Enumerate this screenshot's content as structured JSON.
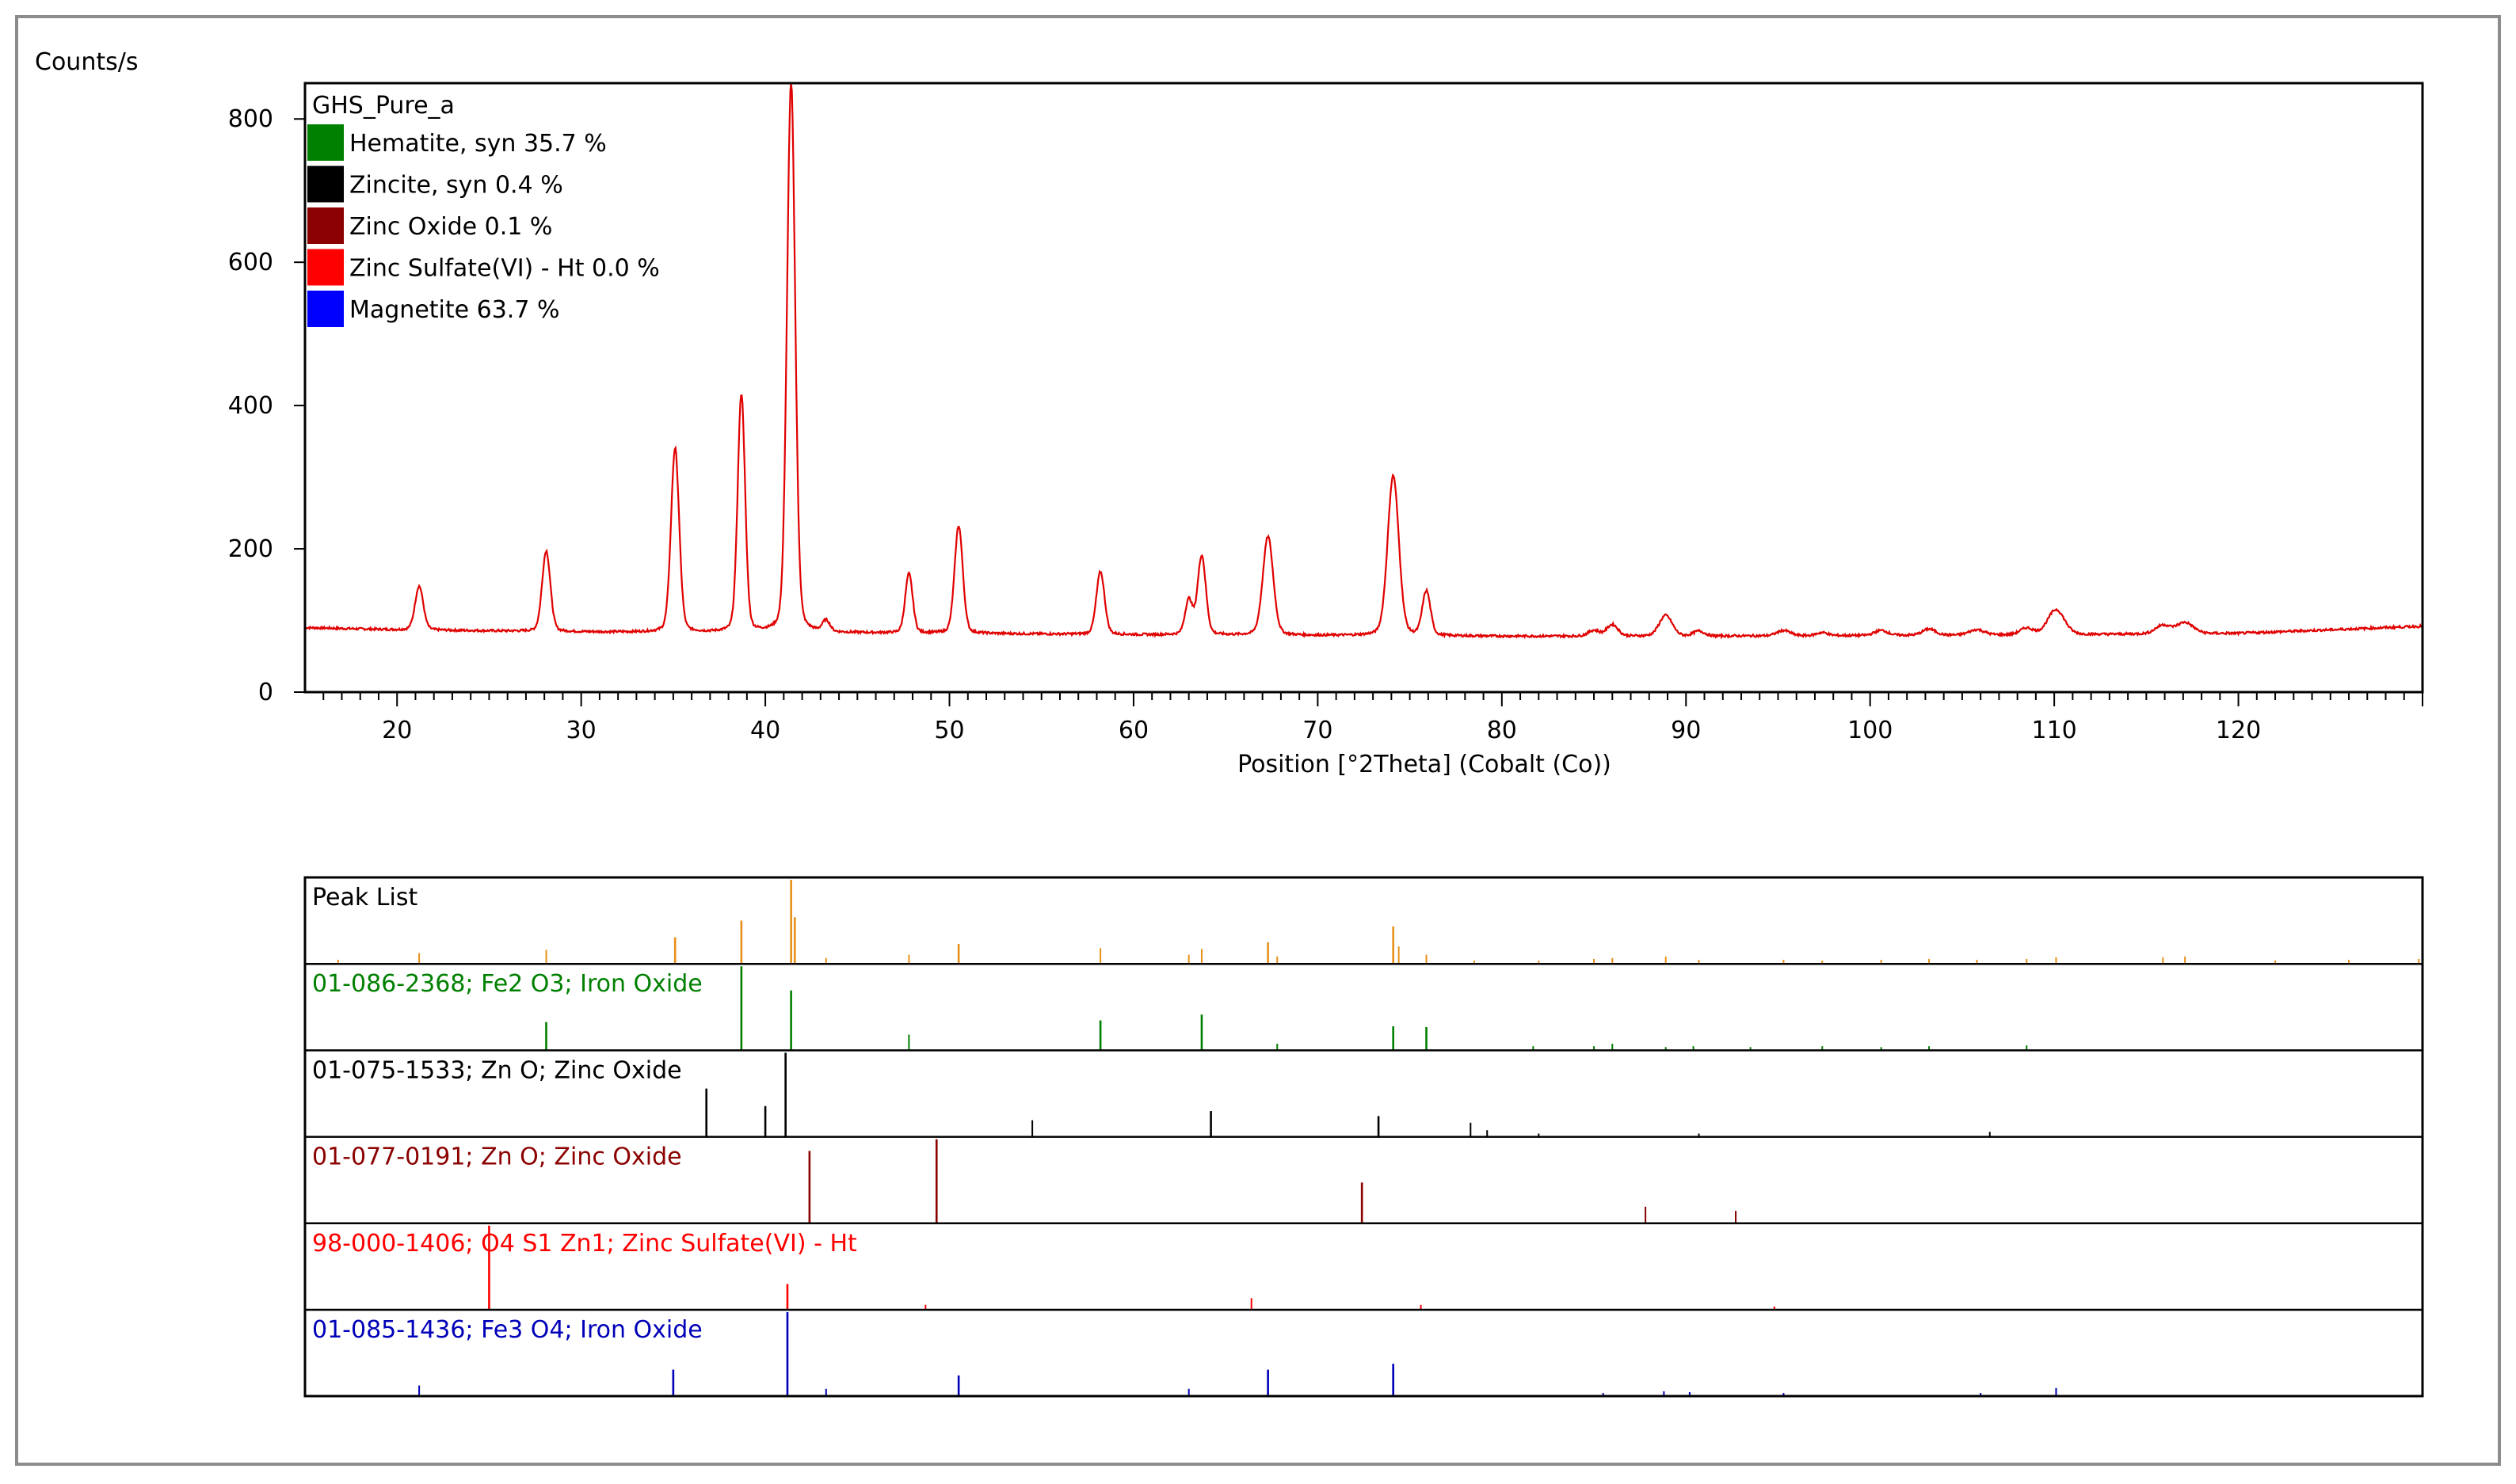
{
  "ylabel": "Counts/s",
  "xlabel": "Position [°2Theta] (Cobalt (Co))",
  "chart_data": {
    "type": "line",
    "sample_name": "GHS_Pure_a",
    "xlabel": "Position [°2Theta] (Cobalt (Co))",
    "ylabel": "Counts/s",
    "xlim": [
      15,
      130
    ],
    "ylim": [
      0,
      850
    ],
    "x_ticks": [
      20,
      30,
      40,
      50,
      60,
      70,
      80,
      90,
      100,
      110,
      120
    ],
    "y_ticks": [
      0,
      200,
      400,
      600,
      800
    ],
    "x_tick_labels": [
      "20",
      "30",
      "40",
      "50",
      "60",
      "70",
      "80",
      "90",
      "100",
      "110",
      "120"
    ],
    "y_tick_labels": [
      "0",
      "200",
      "400",
      "600",
      "800"
    ],
    "line_color": "#e00000",
    "baseline": [
      [
        15,
        90
      ],
      [
        20,
        87
      ],
      [
        30,
        84
      ],
      [
        40,
        83
      ],
      [
        50,
        82
      ],
      [
        60,
        80
      ],
      [
        70,
        79
      ],
      [
        80,
        78
      ],
      [
        90,
        78
      ],
      [
        100,
        79
      ],
      [
        110,
        80
      ],
      [
        120,
        82
      ],
      [
        130,
        92
      ]
    ],
    "peaks": [
      {
        "x": 21.2,
        "y": 148,
        "w": 0.22
      },
      {
        "x": 28.1,
        "y": 197,
        "w": 0.22
      },
      {
        "x": 35.1,
        "y": 340,
        "w": 0.22
      },
      {
        "x": 38.7,
        "y": 415,
        "w": 0.2
      },
      {
        "x": 41.4,
        "y": 850,
        "w": 0.22
      },
      {
        "x": 43.3,
        "y": 98,
        "w": 0.2
      },
      {
        "x": 47.8,
        "y": 165,
        "w": 0.2
      },
      {
        "x": 50.5,
        "y": 232,
        "w": 0.22
      },
      {
        "x": 58.2,
        "y": 168,
        "w": 0.22
      },
      {
        "x": 63.0,
        "y": 128,
        "w": 0.2
      },
      {
        "x": 63.7,
        "y": 190,
        "w": 0.22
      },
      {
        "x": 67.3,
        "y": 217,
        "w": 0.28
      },
      {
        "x": 74.1,
        "y": 302,
        "w": 0.3
      },
      {
        "x": 75.9,
        "y": 140,
        "w": 0.22
      },
      {
        "x": 85.0,
        "y": 86,
        "w": 0.3
      },
      {
        "x": 86.0,
        "y": 94,
        "w": 0.3
      },
      {
        "x": 88.9,
        "y": 107,
        "w": 0.35
      },
      {
        "x": 90.7,
        "y": 85,
        "w": 0.3
      },
      {
        "x": 95.3,
        "y": 86,
        "w": 0.35
      },
      {
        "x": 97.4,
        "y": 83,
        "w": 0.3
      },
      {
        "x": 100.6,
        "y": 86,
        "w": 0.35
      },
      {
        "x": 103.2,
        "y": 88,
        "w": 0.35
      },
      {
        "x": 105.8,
        "y": 87,
        "w": 0.4
      },
      {
        "x": 108.5,
        "y": 89,
        "w": 0.35
      },
      {
        "x": 110.1,
        "y": 115,
        "w": 0.45
      },
      {
        "x": 115.9,
        "y": 93,
        "w": 0.4
      },
      {
        "x": 117.1,
        "y": 97,
        "w": 0.45
      }
    ],
    "legend": [
      {
        "label": "Hematite, syn 35.7 %",
        "color": "#008000"
      },
      {
        "label": "Zincite, syn 0.4 %",
        "color": "#000000"
      },
      {
        "label": "Zinc Oxide 0.1 %",
        "color": "#8b0000"
      },
      {
        "label": "Zinc Sulfate(VI) - Ht 0.0 %",
        "color": "#ff0000"
      },
      {
        "label": "Magnetite 63.7 %",
        "color": "#0000ff"
      }
    ],
    "stick_panels": [
      {
        "label": "Peak List",
        "color": "#e8901a",
        "text_color": "#000000",
        "sticks": [
          [
            16.8,
            0.04
          ],
          [
            21.2,
            0.12
          ],
          [
            28.1,
            0.16
          ],
          [
            35.1,
            0.31
          ],
          [
            38.7,
            0.51
          ],
          [
            41.4,
            1.0
          ],
          [
            41.6,
            0.55
          ],
          [
            43.3,
            0.06
          ],
          [
            47.8,
            0.1
          ],
          [
            50.5,
            0.23
          ],
          [
            58.2,
            0.18
          ],
          [
            63.0,
            0.1
          ],
          [
            63.7,
            0.17
          ],
          [
            67.3,
            0.25
          ],
          [
            67.8,
            0.08
          ],
          [
            74.1,
            0.44
          ],
          [
            74.4,
            0.2
          ],
          [
            75.9,
            0.1
          ],
          [
            78.5,
            0.03
          ],
          [
            82.0,
            0.03
          ],
          [
            85.0,
            0.05
          ],
          [
            86.0,
            0.06
          ],
          [
            88.9,
            0.08
          ],
          [
            90.7,
            0.04
          ],
          [
            95.3,
            0.04
          ],
          [
            97.4,
            0.03
          ],
          [
            100.6,
            0.04
          ],
          [
            103.2,
            0.05
          ],
          [
            105.8,
            0.04
          ],
          [
            108.5,
            0.05
          ],
          [
            110.1,
            0.07
          ],
          [
            115.9,
            0.07
          ],
          [
            117.1,
            0.08
          ],
          [
            122.0,
            0.03
          ],
          [
            126.0,
            0.04
          ],
          [
            129.8,
            0.05
          ]
        ]
      },
      {
        "label": "01-086-2368; Fe2 O3; Iron Oxide",
        "color": "#008000",
        "text_color": "#008000",
        "sticks": [
          [
            28.1,
            0.33
          ],
          [
            38.7,
            1.0
          ],
          [
            41.4,
            0.71
          ],
          [
            47.8,
            0.18
          ],
          [
            58.2,
            0.35
          ],
          [
            63.7,
            0.42
          ],
          [
            67.8,
            0.07
          ],
          [
            74.1,
            0.28
          ],
          [
            75.9,
            0.27
          ],
          [
            81.7,
            0.04
          ],
          [
            85.0,
            0.04
          ],
          [
            86.0,
            0.07
          ],
          [
            88.9,
            0.03
          ],
          [
            90.4,
            0.04
          ],
          [
            93.5,
            0.03
          ],
          [
            97.4,
            0.04
          ],
          [
            100.6,
            0.03
          ],
          [
            103.2,
            0.04
          ],
          [
            108.5,
            0.05
          ]
        ]
      },
      {
        "label": "01-075-1533; Zn O; Zinc Oxide",
        "color": "#000000",
        "text_color": "#000000",
        "sticks": [
          [
            36.8,
            0.57
          ],
          [
            40.0,
            0.36
          ],
          [
            41.1,
            1.0
          ],
          [
            54.5,
            0.19
          ],
          [
            64.2,
            0.3
          ],
          [
            73.3,
            0.24
          ],
          [
            78.3,
            0.16
          ],
          [
            79.2,
            0.07
          ],
          [
            82.0,
            0.03
          ],
          [
            90.7,
            0.03
          ],
          [
            106.5,
            0.05
          ]
        ]
      },
      {
        "label": "01-077-0191; Zn O; Zinc Oxide",
        "color": "#8b0000",
        "text_color": "#8b0000",
        "sticks": [
          [
            42.4,
            0.86
          ],
          [
            49.3,
            1.0
          ],
          [
            72.4,
            0.48
          ],
          [
            87.8,
            0.19
          ],
          [
            92.7,
            0.14
          ]
        ]
      },
      {
        "label": "98-000-1406; O4 S1 Zn1; Zinc Sulfate(VI) - Ht",
        "color": "#ff0000",
        "text_color": "#ff0000",
        "sticks": [
          [
            25.0,
            1.0
          ],
          [
            41.2,
            0.3
          ],
          [
            48.7,
            0.05
          ],
          [
            66.4,
            0.13
          ],
          [
            75.6,
            0.05
          ],
          [
            94.8,
            0.03
          ]
        ]
      },
      {
        "label": "01-085-1436; Fe3 O4; Iron Oxide",
        "color": "#0000b8",
        "text_color": "#0000b8",
        "sticks": [
          [
            21.2,
            0.12
          ],
          [
            35.0,
            0.31
          ],
          [
            41.2,
            1.0
          ],
          [
            43.3,
            0.08
          ],
          [
            50.5,
            0.24
          ],
          [
            63.0,
            0.08
          ],
          [
            67.3,
            0.31
          ],
          [
            74.1,
            0.38
          ],
          [
            85.5,
            0.03
          ],
          [
            88.8,
            0.05
          ],
          [
            90.2,
            0.04
          ],
          [
            95.3,
            0.03
          ],
          [
            106.0,
            0.03
          ],
          [
            110.1,
            0.09
          ]
        ]
      }
    ]
  }
}
